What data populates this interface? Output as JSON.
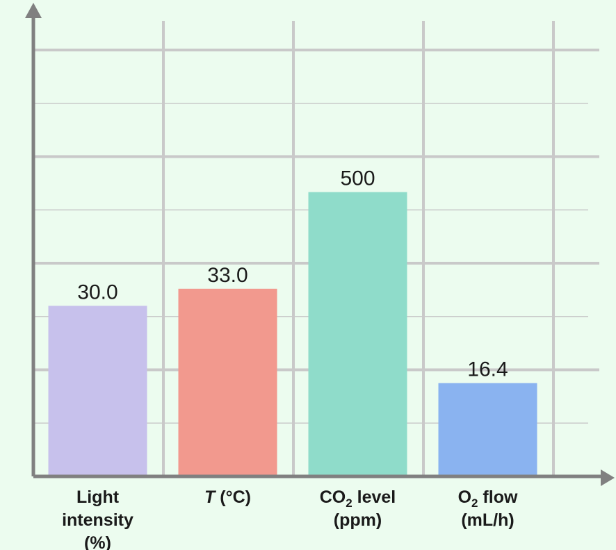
{
  "chart_data": {
    "type": "bar",
    "title": "",
    "xlabel": "",
    "ylabel": "",
    "grid": true,
    "categories": [
      {
        "lines": [
          {
            "parts": [
              {
                "text": "Light"
              }
            ]
          },
          {
            "parts": [
              {
                "text": "intensity"
              }
            ]
          },
          {
            "parts": [
              {
                "text": "(%)"
              }
            ]
          }
        ]
      },
      {
        "lines": [
          {
            "parts": [
              {
                "text": "T",
                "italic": true
              },
              {
                "text": " (°C)"
              }
            ]
          }
        ]
      },
      {
        "lines": [
          {
            "parts": [
              {
                "text": "CO"
              },
              {
                "text": "2",
                "sub": true
              },
              {
                "text": " level"
              }
            ]
          },
          {
            "parts": [
              {
                "text": "(ppm)"
              }
            ]
          }
        ]
      },
      {
        "lines": [
          {
            "parts": [
              {
                "text": "O"
              },
              {
                "text": "2",
                "sub": true
              },
              {
                "text": " flow"
              }
            ]
          },
          {
            "parts": [
              {
                "text": "(mL/h)"
              }
            ]
          }
        ]
      }
    ],
    "values": [
      30.0,
      33.0,
      500,
      16.4
    ],
    "value_labels": [
      "30.0",
      "33.0",
      "500",
      "16.4"
    ],
    "relative_heights": [
      0.4,
      0.44,
      0.6667,
      0.2187
    ],
    "colors": [
      "#c7c1ec",
      "#f2998e",
      "#8fdcca",
      "#8ab3f0"
    ],
    "background_color": "#ecfcef",
    "axis_color": "#808080",
    "grid_color": "#c9c9c9"
  }
}
